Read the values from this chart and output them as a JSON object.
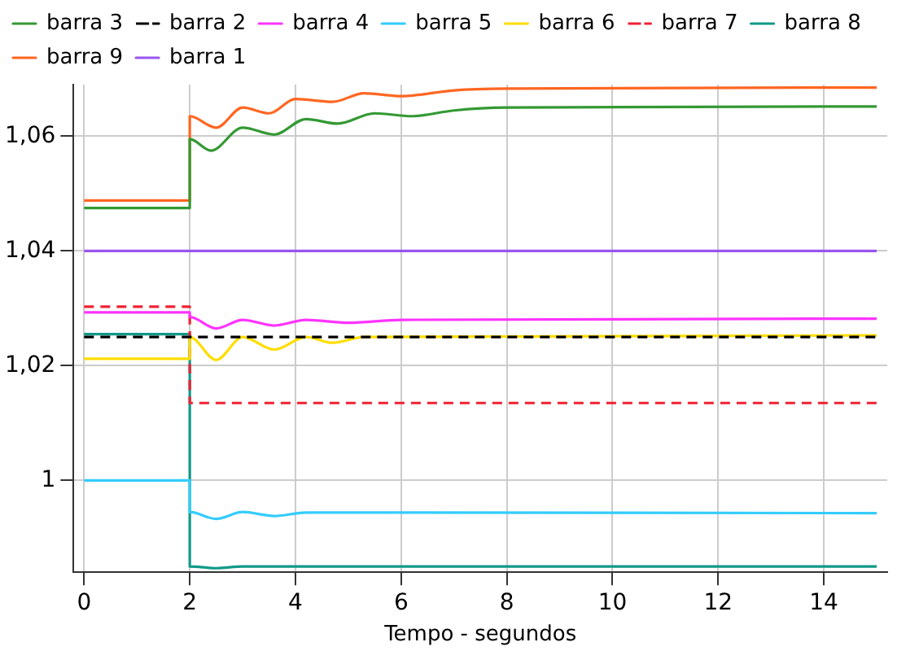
{
  "chart_data": {
    "type": "line",
    "xlabel": "Tempo - segundos",
    "xlim": [
      -0.2,
      15.2
    ],
    "xticks": [
      0,
      2,
      4,
      6,
      8,
      10,
      12,
      14
    ],
    "ylim": [
      0.984,
      1.069
    ],
    "yticks": [
      {
        "value": 1,
        "label": "1"
      },
      {
        "value": 1.02,
        "label": "1,02"
      },
      {
        "value": 1.04,
        "label": "1,04"
      },
      {
        "value": 1.06,
        "label": "1,06"
      }
    ],
    "grid": true,
    "legend": "top",
    "marker": "none",
    "series": [
      {
        "name": "barra 3",
        "color": "#339933",
        "x": [
          0,
          2,
          2,
          2.4,
          3,
          3.6,
          4.2,
          4.8,
          5.5,
          6.2,
          7,
          8,
          15
        ],
        "values": [
          1.0475,
          1.0475,
          1.0595,
          1.0575,
          1.0615,
          1.0603,
          1.063,
          1.0622,
          1.064,
          1.0635,
          1.0645,
          1.065,
          1.0652
        ]
      },
      {
        "name": "barra 2",
        "color": "#000000",
        "line_style": "dashed",
        "x": [
          0,
          15
        ],
        "values": [
          1.025,
          1.025
        ]
      },
      {
        "name": "barra 4",
        "color": "#ff33ff",
        "x": [
          0,
          2,
          2,
          2.5,
          3,
          3.6,
          4.2,
          5,
          6,
          15
        ],
        "values": [
          1.0293,
          1.0293,
          1.0285,
          1.0265,
          1.028,
          1.027,
          1.028,
          1.0275,
          1.028,
          1.0282
        ]
      },
      {
        "name": "barra 5",
        "color": "#33ccff",
        "x": [
          0,
          2,
          2,
          2.5,
          3,
          3.6,
          4.2,
          15
        ],
        "values": [
          1,
          1,
          0.9945,
          0.9933,
          0.9945,
          0.9938,
          0.9944,
          0.9943
        ]
      },
      {
        "name": "barra 6",
        "color": "#ffdd00",
        "x": [
          0,
          2,
          2,
          2.5,
          3,
          3.6,
          4.2,
          4.7,
          5.3,
          15
        ],
        "values": [
          1.0212,
          1.0212,
          1.025,
          1.021,
          1.025,
          1.0228,
          1.025,
          1.024,
          1.025,
          1.0253
        ]
      },
      {
        "name": "barra 7",
        "color": "#ee2233",
        "line_style": "dashed",
        "x": [
          0,
          2,
          2,
          15
        ],
        "values": [
          1.0303,
          1.0303,
          1.0135,
          1.0135
        ]
      },
      {
        "name": "barra 8",
        "color": "#119988",
        "x": [
          0,
          2,
          2,
          2.5,
          3,
          15
        ],
        "values": [
          1.0255,
          1.0255,
          0.985,
          0.9847,
          0.985,
          0.985
        ]
      },
      {
        "name": "barra 9",
        "color": "#ff6622",
        "x": [
          0,
          2,
          2,
          2.5,
          3,
          3.5,
          4,
          4.7,
          5.3,
          6,
          7,
          8,
          15
        ],
        "values": [
          1.0488,
          1.0488,
          1.0635,
          1.0615,
          1.065,
          1.064,
          1.0665,
          1.066,
          1.0675,
          1.067,
          1.068,
          1.0683,
          1.0685
        ]
      },
      {
        "name": "barra 1",
        "color": "#9955ee",
        "x": [
          0,
          15
        ],
        "values": [
          1.04,
          1.04
        ]
      }
    ]
  }
}
